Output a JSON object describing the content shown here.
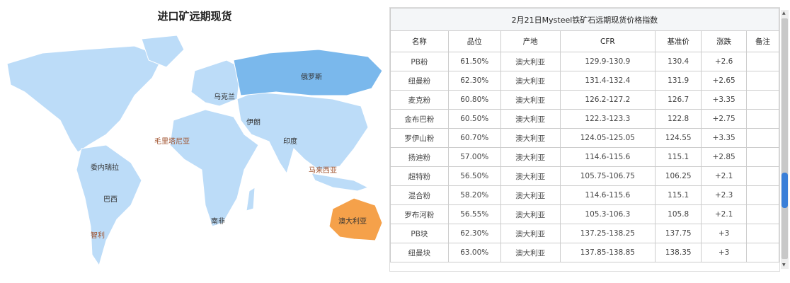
{
  "map": {
    "title": "进口矿远期现货",
    "labels": {
      "russia": "俄罗斯",
      "ukraine": "乌克兰",
      "iran": "伊朗",
      "india": "印度",
      "malaysia": "马来西亚",
      "mauritania": "毛里塔尼亚",
      "venezuela": "委内瑞拉",
      "brazil": "巴西",
      "chile": "智利",
      "south_africa": "南非",
      "australia": "澳大利亚"
    },
    "colors": {
      "land": "#bcdcf8",
      "highlight": "#7ab8ec",
      "australia": "#f5a14a"
    }
  },
  "table": {
    "title": "2月21日Mysteel铁矿石远期现货价格指数",
    "headers": [
      "名称",
      "品位",
      "产地",
      "CFR",
      "基准价",
      "涨跌",
      "备注"
    ],
    "rows": [
      [
        "PB粉",
        "61.50%",
        "澳大利亚",
        "129.9-130.9",
        "130.4",
        "+2.6",
        ""
      ],
      [
        "纽曼粉",
        "62.30%",
        "澳大利亚",
        "131.4-132.4",
        "131.9",
        "+2.65",
        ""
      ],
      [
        "麦克粉",
        "60.80%",
        "澳大利亚",
        "126.2-127.2",
        "126.7",
        "+3.35",
        ""
      ],
      [
        "金布巴粉",
        "60.50%",
        "澳大利亚",
        "122.3-123.3",
        "122.8",
        "+2.75",
        ""
      ],
      [
        "罗伊山粉",
        "60.70%",
        "澳大利亚",
        "124.05-125.05",
        "124.55",
        "+3.35",
        ""
      ],
      [
        "扬迪粉",
        "57.00%",
        "澳大利亚",
        "114.6-115.6",
        "115.1",
        "+2.85",
        ""
      ],
      [
        "超特粉",
        "56.50%",
        "澳大利亚",
        "105.75-106.75",
        "106.25",
        "+2.1",
        ""
      ],
      [
        "混合粉",
        "58.20%",
        "澳大利亚",
        "114.6-115.6",
        "115.1",
        "+2.3",
        ""
      ],
      [
        "罗布河粉",
        "56.55%",
        "澳大利亚",
        "105.3-106.3",
        "105.8",
        "+2.1",
        ""
      ],
      [
        "PB块",
        "62.30%",
        "澳大利亚",
        "137.25-138.25",
        "137.75",
        "+3",
        ""
      ],
      [
        "纽曼块",
        "63.00%",
        "澳大利亚",
        "137.85-138.85",
        "138.35",
        "+3",
        ""
      ]
    ]
  }
}
